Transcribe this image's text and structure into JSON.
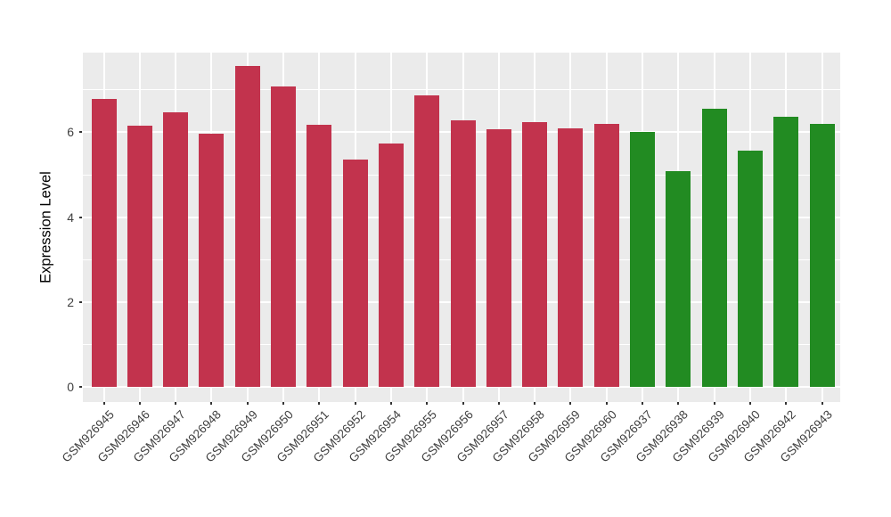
{
  "chart_data": {
    "type": "bar",
    "title": "",
    "xlabel": "",
    "ylabel": "Expression Level",
    "categories": [
      "GSM926945",
      "GSM926946",
      "GSM926947",
      "GSM926948",
      "GSM926949",
      "GSM926950",
      "GSM926951",
      "GSM926952",
      "GSM926954",
      "GSM926955",
      "GSM926956",
      "GSM926957",
      "GSM926958",
      "GSM926959",
      "GSM926960",
      "GSM926937",
      "GSM926938",
      "GSM926939",
      "GSM926940",
      "GSM926942",
      "GSM926943"
    ],
    "values": [
      6.78,
      6.15,
      6.48,
      5.96,
      7.57,
      7.09,
      6.17,
      5.35,
      5.73,
      6.88,
      6.28,
      6.07,
      6.23,
      6.1,
      6.19,
      6.0,
      5.08,
      6.55,
      5.56,
      6.37,
      6.2
    ],
    "groups": [
      "red",
      "red",
      "red",
      "red",
      "red",
      "red",
      "red",
      "red",
      "red",
      "red",
      "red",
      "red",
      "red",
      "red",
      "red",
      "green",
      "green",
      "green",
      "green",
      "green",
      "green"
    ],
    "group_colors": {
      "red": "#C2334D",
      "green": "#228B22"
    },
    "ytick_labels": [
      "0",
      "2",
      "4",
      "6"
    ],
    "yticks_major": [
      0,
      2,
      4,
      6
    ],
    "yticks_minor": [
      1,
      3,
      5,
      7
    ],
    "ylim": [
      -0.37,
      7.88
    ],
    "grid": true,
    "legend_position": "none",
    "colors": {
      "panel_bg": "#EBEBEB",
      "gridline": "#FFFFFF",
      "axis_text": "#404040",
      "axis_title": "#000000"
    }
  }
}
